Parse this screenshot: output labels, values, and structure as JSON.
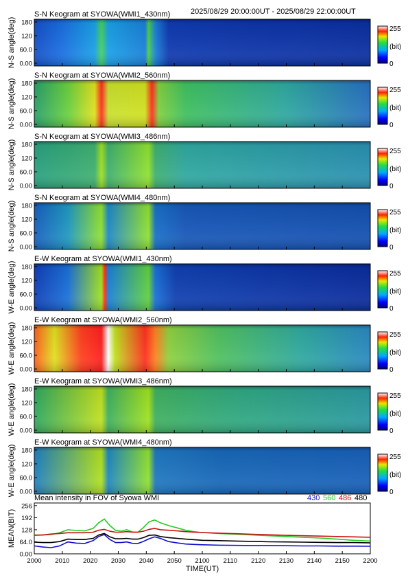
{
  "header": {
    "time_range": "2025/08/29 20:00:00UT - 2025/08/29 22:00:00UT"
  },
  "colorbar": {
    "max_label": "255",
    "unit_label": "(bit)",
    "min_label": "0"
  },
  "x_axis": {
    "label": "TIME(UT)",
    "ticks": [
      "2000",
      "2010",
      "2020",
      "2030",
      "2040",
      "2050",
      "2100",
      "2110",
      "2120",
      "2130",
      "2140",
      "2150",
      "2200"
    ]
  },
  "panels": [
    {
      "title": "S-N Keogram at SYOWA(WMI1_430nm)",
      "ylabel": "N-S angle(deg)",
      "yticks": [
        "180",
        "120",
        "60.0",
        "0.00"
      ],
      "style": "w430ns"
    },
    {
      "title": "S-N Keogram at SYOWA(WMI2_560nm)",
      "ylabel": "N-S angle(deg)",
      "yticks": [
        "180",
        "120",
        "60.0",
        "0.00"
      ],
      "style": "w560ns"
    },
    {
      "title": "S-N Keogram at SYOWA(WMI3_486nm)",
      "ylabel": "N-S angle(deg)",
      "yticks": [
        "180",
        "120",
        "60.0",
        "0.00"
      ],
      "style": "w486ns"
    },
    {
      "title": "S-N Keogram at SYOWA(WMI4_480nm)",
      "ylabel": "N-S angle(deg)",
      "yticks": [
        "180",
        "120",
        "60.0",
        "0.00"
      ],
      "style": "w480ns"
    },
    {
      "title": "E-W Keogram at SYOWA(WMI1_430nm)",
      "ylabel": "W-E angle(deg)",
      "yticks": [
        "180",
        "120",
        "60.0",
        "0.00"
      ],
      "style": "w430ew"
    },
    {
      "title": "E-W Keogram at SYOWA(WMI2_560nm)",
      "ylabel": "W-E angle(deg)",
      "yticks": [
        "180",
        "120",
        "60.0",
        "0.00"
      ],
      "style": "w560ew"
    },
    {
      "title": "E-W Keogram at SYOWA(WMI3_486nm)",
      "ylabel": "W-E angle(deg)",
      "yticks": [
        "180",
        "120",
        "60.0",
        "0.00"
      ],
      "style": "w486ew"
    },
    {
      "title": "E-W Keogram at SYOWA(WMI4_480nm)",
      "ylabel": "W-E angle(deg)",
      "yticks": [
        "180",
        "120",
        "60.0",
        "0.00"
      ],
      "style": "w480ew"
    }
  ],
  "chart_data": {
    "type": "line",
    "title": "Mean intensity in FOV of Syowa WMI",
    "xlabel": "TIME(UT)",
    "ylabel": "MEAN(BIT)",
    "yticks": [
      "256",
      "192",
      "128",
      "64.0",
      "0.00"
    ],
    "ylim": [
      0,
      270
    ],
    "xlim_minutes": [
      0,
      120
    ],
    "x_minutes": [
      0,
      3,
      6,
      9,
      12,
      15,
      18,
      21,
      23,
      25,
      27,
      29,
      31,
      33,
      35,
      37,
      39,
      41,
      43,
      45,
      48,
      51,
      54,
      57,
      60,
      66,
      72,
      78,
      84,
      90,
      96,
      102,
      108,
      114,
      120
    ],
    "series": [
      {
        "name": "430",
        "color": "#1010cc",
        "values": [
          42,
          36,
          33,
          42,
          63,
          57,
          55,
          70,
          92,
          102,
          76,
          60,
          60,
          63,
          56,
          55,
          66,
          80,
          90,
          82,
          65,
          58,
          52,
          50,
          48,
          46,
          45,
          44,
          44,
          43,
          42,
          42,
          41,
          41,
          40
        ]
      },
      {
        "name": "560",
        "color": "#22cc22",
        "values": [
          100,
          100,
          102,
          112,
          128,
          124,
          122,
          135,
          165,
          185,
          150,
          125,
          120,
          128,
          116,
          115,
          140,
          170,
          180,
          165,
          150,
          138,
          125,
          118,
          113,
          108,
          104,
          100,
          96,
          92,
          88,
          84,
          78,
          72,
          68
        ]
      },
      {
        "name": "486",
        "color": "#cc1010",
        "values": [
          98,
          100,
          105,
          108,
          112,
          112,
          112,
          115,
          125,
          130,
          120,
          115,
          115,
          118,
          115,
          115,
          120,
          130,
          135,
          128,
          125,
          122,
          118,
          115,
          113,
          110,
          107,
          104,
          101,
          98,
          96,
          94,
          92,
          90,
          88
        ]
      },
      {
        "name": "480",
        "color": "#000000",
        "values": [
          62,
          60,
          60,
          65,
          78,
          76,
          76,
          82,
          100,
          108,
          90,
          80,
          80,
          82,
          78,
          78,
          86,
          98,
          100,
          92,
          86,
          82,
          78,
          75,
          72,
          70,
          68,
          66,
          64,
          63,
          62,
          61,
          60,
          60,
          58
        ]
      }
    ]
  }
}
